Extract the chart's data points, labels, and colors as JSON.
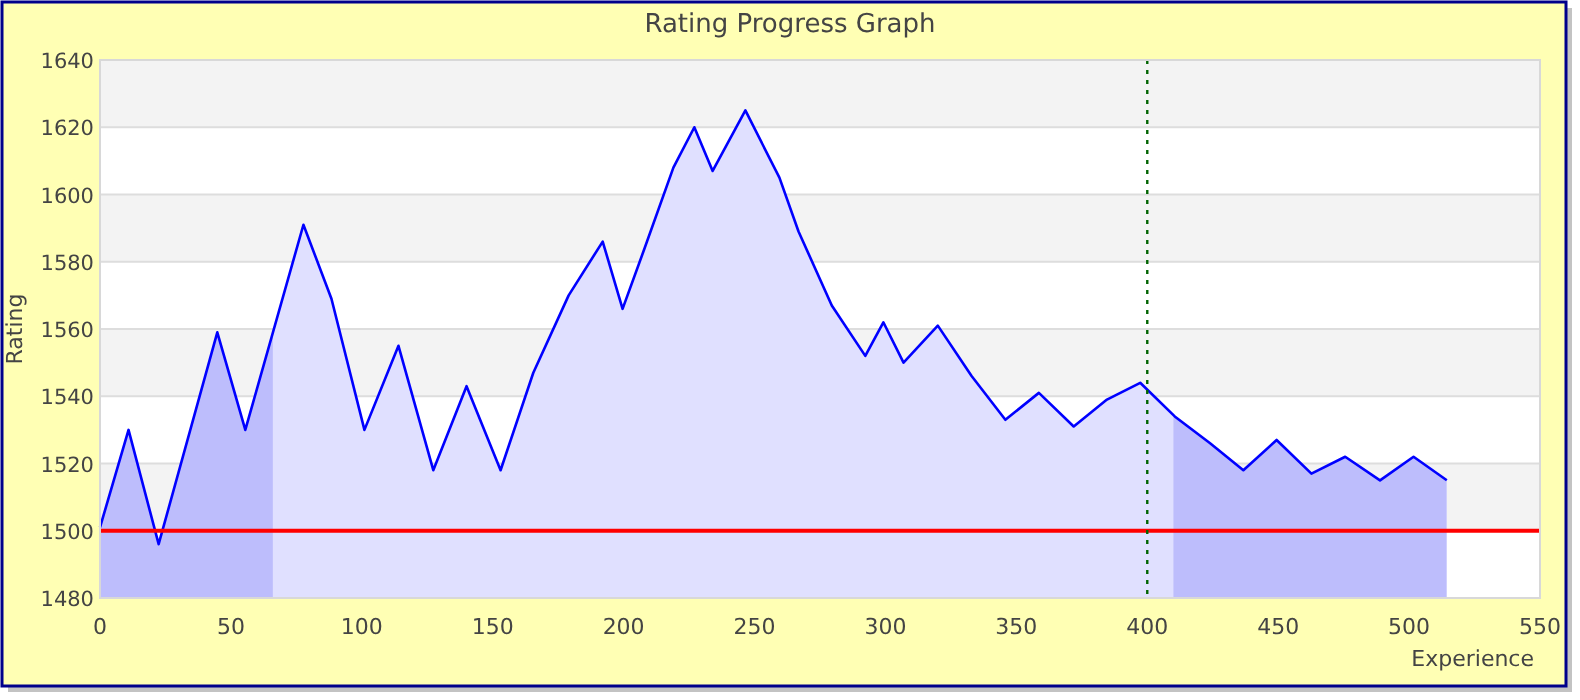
{
  "chart_data": {
    "type": "area",
    "title": "Rating Progress Graph",
    "xlabel": "Experience",
    "ylabel": "Rating",
    "series": [
      {
        "color": "#0000ff",
        "x": [
          0,
          10.9,
          22.4,
          44.8,
          55.5,
          77.7,
          88.4,
          101,
          114,
          127.3,
          140,
          153,
          165.5,
          179,
          192,
          199.6,
          208,
          219,
          227,
          234,
          246.5,
          259.5,
          266.8,
          279.5,
          292.3,
          299.2,
          306.9,
          320,
          332.9,
          345.8,
          358.6,
          371.9,
          384.6,
          397.3,
          410.5,
          424,
          436.7,
          449.4,
          462.7,
          475.6,
          488.9,
          501.7,
          514.4
        ],
        "values": [
          1501,
          1530,
          1496,
          1559,
          1530,
          1591,
          1569,
          1530,
          1555,
          1518,
          1543,
          1518,
          1547,
          1570,
          1586,
          1566,
          1584,
          1608,
          1620,
          1607,
          1625,
          1605,
          1589,
          1567,
          1552,
          1562,
          1550,
          1561,
          1546,
          1533,
          1541,
          1531,
          1539,
          1544,
          1534,
          1526,
          1518,
          1527,
          1517,
          1522,
          1515,
          1522,
          1515
        ]
      }
    ],
    "xlim": [
      0,
      550
    ],
    "xticks": [
      0,
      50,
      100,
      150,
      200,
      250,
      300,
      350,
      400,
      450,
      500,
      550
    ],
    "ylim": [
      1480,
      1640
    ],
    "yticks": [
      1480,
      1500,
      1520,
      1540,
      1560,
      1580,
      1600,
      1620,
      1640
    ],
    "grid": "y",
    "ref_lines": [
      {
        "axis": "y",
        "value": 1500,
        "color": "#ff0000",
        "line_style": "solid"
      },
      {
        "axis": "x",
        "value": 400,
        "color": "#006400",
        "line_style": "dotted"
      }
    ],
    "bands": [
      {
        "axis": "x",
        "from": 0,
        "to": 66,
        "color": "#d8d8fc"
      },
      {
        "axis": "x",
        "from": 410,
        "to": 514.4,
        "color": "#d8d8fc"
      }
    ]
  }
}
